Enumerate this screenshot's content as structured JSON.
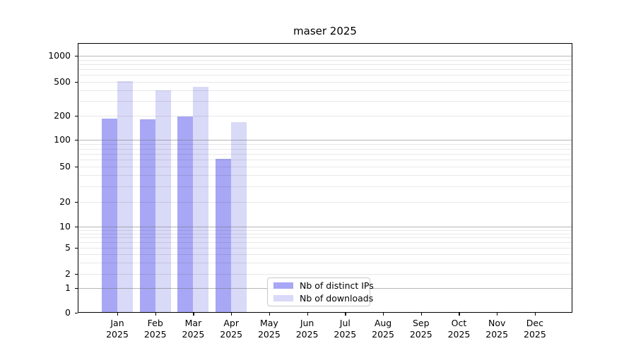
{
  "title": "maser 2025",
  "colors": {
    "distinct_ips": "#a7a7f5",
    "downloads": "#d9d9f8",
    "spine": "#000000"
  },
  "legend": {
    "items": [
      {
        "label": "Nb of distinct IPs",
        "color": "#a7a7f5"
      },
      {
        "label": "Nb of downloads",
        "color": "#d9d9f8"
      }
    ]
  },
  "axes": {
    "y_tick_labels": [
      "1000",
      "500",
      "200",
      "100",
      "50",
      "20",
      "10",
      "5",
      "2",
      "1",
      "0"
    ],
    "x_month_labels": [
      "Jan",
      "Feb",
      "Mar",
      "Apr",
      "May",
      "Jun",
      "Jul",
      "Aug",
      "Sep",
      "Oct",
      "Nov",
      "Dec"
    ],
    "x_year_label": "2025"
  },
  "chart_data": {
    "type": "bar",
    "title": "maser 2025",
    "categories": [
      "Jan 2025",
      "Feb 2025",
      "Mar 2025",
      "Apr 2025",
      "May 2025",
      "Jun 2025",
      "Jul 2025",
      "Aug 2025",
      "Sep 2025",
      "Oct 2025",
      "Nov 2025",
      "Dec 2025"
    ],
    "series": [
      {
        "name": "Nb of distinct IPs",
        "color": "#a7a7f5",
        "values": [
          185,
          183,
          197,
          61,
          null,
          null,
          null,
          null,
          null,
          null,
          null,
          null
        ]
      },
      {
        "name": "Nb of downloads",
        "color": "#d9d9f8",
        "values": [
          505,
          400,
          440,
          166,
          null,
          null,
          null,
          null,
          null,
          null,
          null,
          null
        ]
      }
    ],
    "xlabel": "",
    "ylabel": "",
    "yscale": "symlog",
    "y_ticks": [
      0,
      1,
      2,
      5,
      10,
      20,
      50,
      100,
      200,
      500,
      1000
    ],
    "ylim": [
      0,
      1500
    ],
    "grid": "horizontal major (powers of 10, darker) and minor (lighter), drawn over bars",
    "legend_position": "lower center inside plot"
  }
}
